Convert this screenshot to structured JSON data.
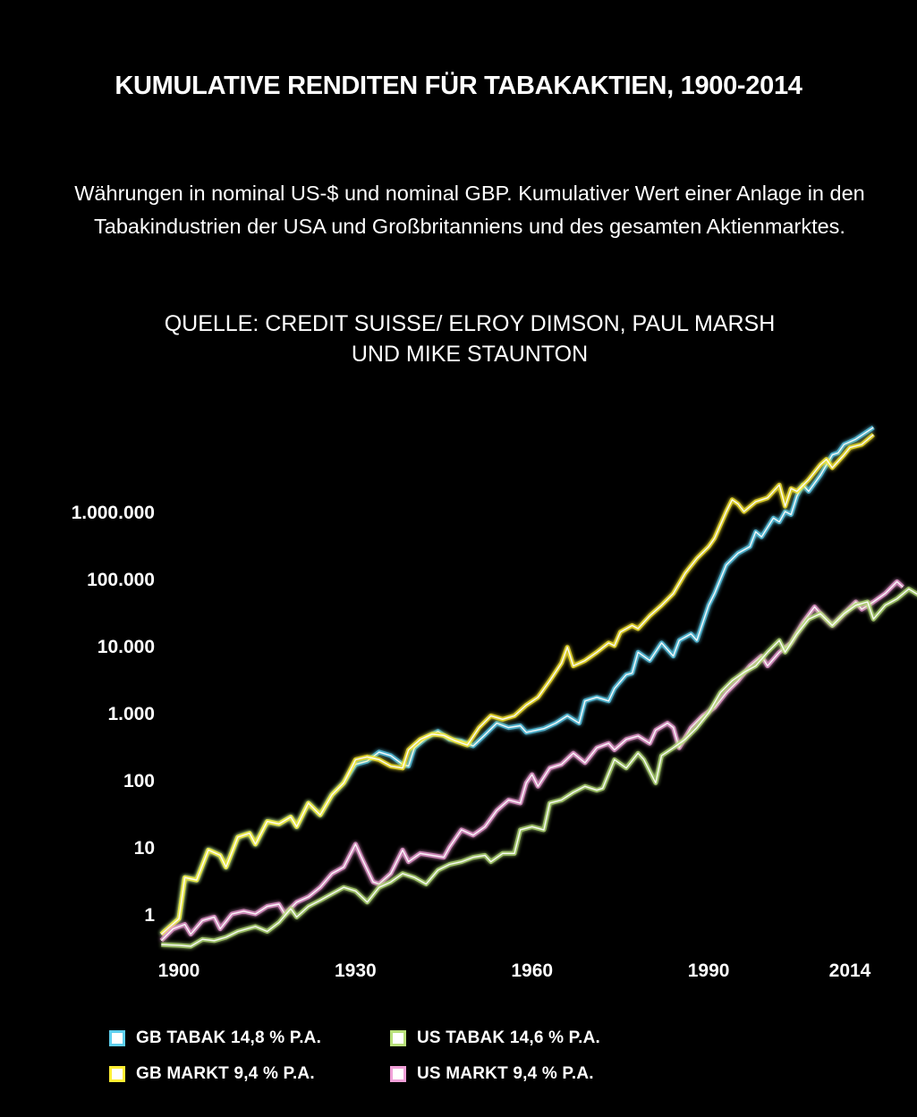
{
  "title": "KUMULATIVE RENDITEN FÜR TABAKAKTIEN, 1900-2014",
  "subtitle": "Währungen in nominal US-$ und nominal GBP. Kumulativer Wert einer Anlage in den Tabakindustrien der USA und Großbritanniens und des gesamten Aktienmarktes.",
  "source_lines": [
    "QUELLE: CREDIT SUISSE/ ELROY DIMSON, PAUL MARSH",
    "UND MIKE STAUNTON"
  ],
  "legend": [
    {
      "label": "GB TABAK 14,8 %  P.A.",
      "color": "#5ecfee"
    },
    {
      "label": "US TABAK 14,6 % P.A.",
      "color": "#b8e07a"
    },
    {
      "label": "GB MARKT 9,4 % P.A.",
      "color": "#ffee33"
    },
    {
      "label": "US MARKT 9,4 %  P.A.",
      "color": "#f0a0d8"
    }
  ],
  "chart_data": {
    "type": "line",
    "y_scale": "log",
    "xlim": [
      1900,
      2014
    ],
    "ylim": [
      0.25,
      30000000
    ],
    "x_ticks": [
      1900,
      1930,
      1960,
      1990,
      2014
    ],
    "x_tick_labels": [
      "1900",
      "1930",
      "1960",
      "1990",
      "2014"
    ],
    "y_ticks": [
      1,
      10,
      100,
      1000,
      10000,
      100000,
      1000000
    ],
    "y_tick_labels": [
      "1",
      "10",
      "100",
      "1.000",
      "10.000",
      "100.000",
      "1.000.000"
    ],
    "grid": false,
    "legend_position": "bottom",
    "series": [
      {
        "name": "GB TABAK 14,8 %  P.A.",
        "color": "#5ecfee",
        "points": [
          [
            1897,
            0.5
          ],
          [
            1900,
            0.85
          ],
          [
            1901,
            3.5
          ],
          [
            1903,
            3.2
          ],
          [
            1905,
            9
          ],
          [
            1907,
            7.5
          ],
          [
            1908,
            5
          ],
          [
            1910,
            14
          ],
          [
            1912,
            16
          ],
          [
            1913,
            11
          ],
          [
            1915,
            24
          ],
          [
            1917,
            22
          ],
          [
            1919,
            28
          ],
          [
            1920,
            20
          ],
          [
            1922,
            45
          ],
          [
            1924,
            30
          ],
          [
            1926,
            60
          ],
          [
            1928,
            90
          ],
          [
            1930,
            170
          ],
          [
            1932,
            190
          ],
          [
            1934,
            260
          ],
          [
            1936,
            230
          ],
          [
            1938,
            170
          ],
          [
            1939,
            160
          ],
          [
            1940,
            300
          ],
          [
            1942,
            420
          ],
          [
            1944,
            530
          ],
          [
            1946,
            400
          ],
          [
            1948,
            380
          ],
          [
            1950,
            320
          ],
          [
            1952,
            470
          ],
          [
            1954,
            700
          ],
          [
            1956,
            600
          ],
          [
            1958,
            640
          ],
          [
            1959,
            510
          ],
          [
            1962,
            580
          ],
          [
            1964,
            700
          ],
          [
            1966,
            900
          ],
          [
            1968,
            700
          ],
          [
            1969,
            1500
          ],
          [
            1971,
            1700
          ],
          [
            1973,
            1500
          ],
          [
            1974,
            2300
          ],
          [
            1976,
            3700
          ],
          [
            1977,
            3900
          ],
          [
            1978,
            8000
          ],
          [
            1980,
            6000
          ],
          [
            1982,
            11000
          ],
          [
            1984,
            7000
          ],
          [
            1985,
            12000
          ],
          [
            1987,
            15000
          ],
          [
            1988,
            12000
          ],
          [
            1990,
            40000
          ],
          [
            1991,
            60000
          ],
          [
            1993,
            160000
          ],
          [
            1995,
            240000
          ],
          [
            1997,
            300000
          ],
          [
            1998,
            500000
          ],
          [
            1999,
            420000
          ],
          [
            2001,
            800000
          ],
          [
            2002,
            700000
          ],
          [
            2003,
            1000000
          ],
          [
            2004,
            900000
          ],
          [
            2005,
            1700000
          ],
          [
            2006,
            2500000
          ],
          [
            2007,
            2000000
          ],
          [
            2009,
            3500000
          ],
          [
            2011,
            7000000
          ],
          [
            2012,
            7500000
          ],
          [
            2013,
            10000000
          ],
          [
            2015,
            12000000
          ],
          [
            2018,
            18000000
          ]
        ]
      },
      {
        "name": "GB MARKT 9,4 % P.A.",
        "color": "#ffee33",
        "points": [
          [
            1897,
            0.5
          ],
          [
            1900,
            0.85
          ],
          [
            1901,
            3.5
          ],
          [
            1903,
            3.2
          ],
          [
            1905,
            9
          ],
          [
            1907,
            7.5
          ],
          [
            1908,
            5
          ],
          [
            1910,
            14
          ],
          [
            1912,
            16
          ],
          [
            1913,
            11
          ],
          [
            1915,
            24
          ],
          [
            1917,
            22
          ],
          [
            1919,
            28
          ],
          [
            1920,
            20
          ],
          [
            1922,
            45
          ],
          [
            1924,
            30
          ],
          [
            1926,
            60
          ],
          [
            1928,
            90
          ],
          [
            1930,
            200
          ],
          [
            1932,
            220
          ],
          [
            1934,
            200
          ],
          [
            1936,
            160
          ],
          [
            1938,
            150
          ],
          [
            1939,
            280
          ],
          [
            1941,
            400
          ],
          [
            1943,
            480
          ],
          [
            1945,
            460
          ],
          [
            1947,
            380
          ],
          [
            1949,
            330
          ],
          [
            1951,
            600
          ],
          [
            1953,
            900
          ],
          [
            1955,
            800
          ],
          [
            1957,
            900
          ],
          [
            1959,
            1300
          ],
          [
            1961,
            1700
          ],
          [
            1963,
            3000
          ],
          [
            1965,
            5500
          ],
          [
            1966,
            9500
          ],
          [
            1967,
            5000
          ],
          [
            1969,
            6000
          ],
          [
            1971,
            8000
          ],
          [
            1973,
            11000
          ],
          [
            1974,
            10000
          ],
          [
            1975,
            16000
          ],
          [
            1977,
            20000
          ],
          [
            1978,
            18000
          ],
          [
            1980,
            28000
          ],
          [
            1982,
            40000
          ],
          [
            1984,
            60000
          ],
          [
            1986,
            120000
          ],
          [
            1988,
            200000
          ],
          [
            1990,
            300000
          ],
          [
            1991,
            400000
          ],
          [
            1993,
            1000000
          ],
          [
            1994,
            1500000
          ],
          [
            1995,
            1300000
          ],
          [
            1996,
            1000000
          ],
          [
            1998,
            1400000
          ],
          [
            2000,
            1600000
          ],
          [
            2002,
            2500000
          ],
          [
            2003,
            1200000
          ],
          [
            2004,
            2200000
          ],
          [
            2005,
            2000000
          ],
          [
            2007,
            3000000
          ],
          [
            2009,
            5000000
          ],
          [
            2010,
            6000000
          ],
          [
            2011,
            4500000
          ],
          [
            2013,
            7000000
          ],
          [
            2014,
            9000000
          ],
          [
            2016,
            10000000
          ],
          [
            2018,
            14000000
          ]
        ]
      },
      {
        "name": "US MARKT 9,4 %  P.A.",
        "color": "#f0a0d8",
        "points": [
          [
            1897,
            0.4
          ],
          [
            1899,
            0.6
          ],
          [
            1901,
            0.7
          ],
          [
            1902,
            0.5
          ],
          [
            1904,
            0.8
          ],
          [
            1906,
            0.9
          ],
          [
            1907,
            0.6
          ],
          [
            1909,
            1
          ],
          [
            1911,
            1.1
          ],
          [
            1913,
            1
          ],
          [
            1915,
            1.3
          ],
          [
            1917,
            1.4
          ],
          [
            1918,
            1
          ],
          [
            1920,
            1.5
          ],
          [
            1922,
            1.8
          ],
          [
            1924,
            2.5
          ],
          [
            1926,
            4
          ],
          [
            1928,
            5
          ],
          [
            1930,
            11
          ],
          [
            1931,
            7
          ],
          [
            1933,
            3
          ],
          [
            1934,
            2.8
          ],
          [
            1936,
            4
          ],
          [
            1938,
            9
          ],
          [
            1939,
            6
          ],
          [
            1941,
            8
          ],
          [
            1943,
            7.5
          ],
          [
            1945,
            7
          ],
          [
            1946,
            10
          ],
          [
            1948,
            18
          ],
          [
            1950,
            15
          ],
          [
            1952,
            20
          ],
          [
            1954,
            35
          ],
          [
            1956,
            50
          ],
          [
            1958,
            45
          ],
          [
            1959,
            90
          ],
          [
            1960,
            120
          ],
          [
            1961,
            80
          ],
          [
            1963,
            150
          ],
          [
            1965,
            170
          ],
          [
            1967,
            250
          ],
          [
            1969,
            180
          ],
          [
            1971,
            300
          ],
          [
            1973,
            350
          ],
          [
            1974,
            280
          ],
          [
            1976,
            400
          ],
          [
            1978,
            450
          ],
          [
            1980,
            350
          ],
          [
            1981,
            550
          ],
          [
            1983,
            700
          ],
          [
            1984,
            600
          ],
          [
            1985,
            300
          ],
          [
            1987,
            600
          ],
          [
            1989,
            900
          ],
          [
            1991,
            1200
          ],
          [
            1993,
            2000
          ],
          [
            1995,
            3000
          ],
          [
            1997,
            5000
          ],
          [
            1999,
            7000
          ],
          [
            2000,
            5000
          ],
          [
            2002,
            8000
          ],
          [
            2004,
            11000
          ],
          [
            2006,
            22000
          ],
          [
            2008,
            38000
          ],
          [
            2009,
            30000
          ],
          [
            2011,
            20000
          ],
          [
            2013,
            30000
          ],
          [
            2015,
            45000
          ],
          [
            2016,
            35000
          ],
          [
            2018,
            45000
          ],
          [
            2020,
            60000
          ],
          [
            2022,
            90000
          ],
          [
            2023,
            75000
          ]
        ]
      },
      {
        "name": "US TABAK 14,6 % P.A.",
        "color": "#b8e07a",
        "points": [
          [
            1897,
            0.35
          ],
          [
            1900,
            0.34
          ],
          [
            1902,
            0.33
          ],
          [
            1904,
            0.42
          ],
          [
            1906,
            0.4
          ],
          [
            1908,
            0.45
          ],
          [
            1910,
            0.55
          ],
          [
            1913,
            0.65
          ],
          [
            1915,
            0.55
          ],
          [
            1917,
            0.75
          ],
          [
            1919,
            1.2
          ],
          [
            1920,
            0.9
          ],
          [
            1922,
            1.3
          ],
          [
            1924,
            1.6
          ],
          [
            1926,
            2
          ],
          [
            1928,
            2.5
          ],
          [
            1930,
            2.2
          ],
          [
            1932,
            1.5
          ],
          [
            1934,
            2.5
          ],
          [
            1936,
            3
          ],
          [
            1938,
            4
          ],
          [
            1940,
            3.5
          ],
          [
            1942,
            2.8
          ],
          [
            1944,
            4.5
          ],
          [
            1946,
            5.5
          ],
          [
            1948,
            6
          ],
          [
            1950,
            7
          ],
          [
            1952,
            7.5
          ],
          [
            1953,
            6
          ],
          [
            1955,
            8
          ],
          [
            1957,
            8
          ],
          [
            1958,
            18
          ],
          [
            1960,
            20
          ],
          [
            1962,
            18
          ],
          [
            1963,
            45
          ],
          [
            1965,
            50
          ],
          [
            1967,
            65
          ],
          [
            1969,
            80
          ],
          [
            1971,
            70
          ],
          [
            1972,
            75
          ],
          [
            1974,
            200
          ],
          [
            1976,
            150
          ],
          [
            1978,
            250
          ],
          [
            1979,
            200
          ],
          [
            1981,
            90
          ],
          [
            1982,
            230
          ],
          [
            1984,
            300
          ],
          [
            1986,
            400
          ],
          [
            1988,
            600
          ],
          [
            1990,
            1000
          ],
          [
            1992,
            2000
          ],
          [
            1994,
            3000
          ],
          [
            1996,
            4000
          ],
          [
            1998,
            5000
          ],
          [
            2000,
            8000
          ],
          [
            2002,
            12000
          ],
          [
            2003,
            8000
          ],
          [
            2005,
            15000
          ],
          [
            2007,
            25000
          ],
          [
            2009,
            30000
          ],
          [
            2011,
            20000
          ],
          [
            2013,
            30000
          ],
          [
            2015,
            40000
          ],
          [
            2017,
            45000
          ],
          [
            2018,
            25000
          ],
          [
            2020,
            40000
          ],
          [
            2022,
            50000
          ],
          [
            2024,
            70000
          ],
          [
            2026,
            55000
          ]
        ]
      }
    ]
  }
}
